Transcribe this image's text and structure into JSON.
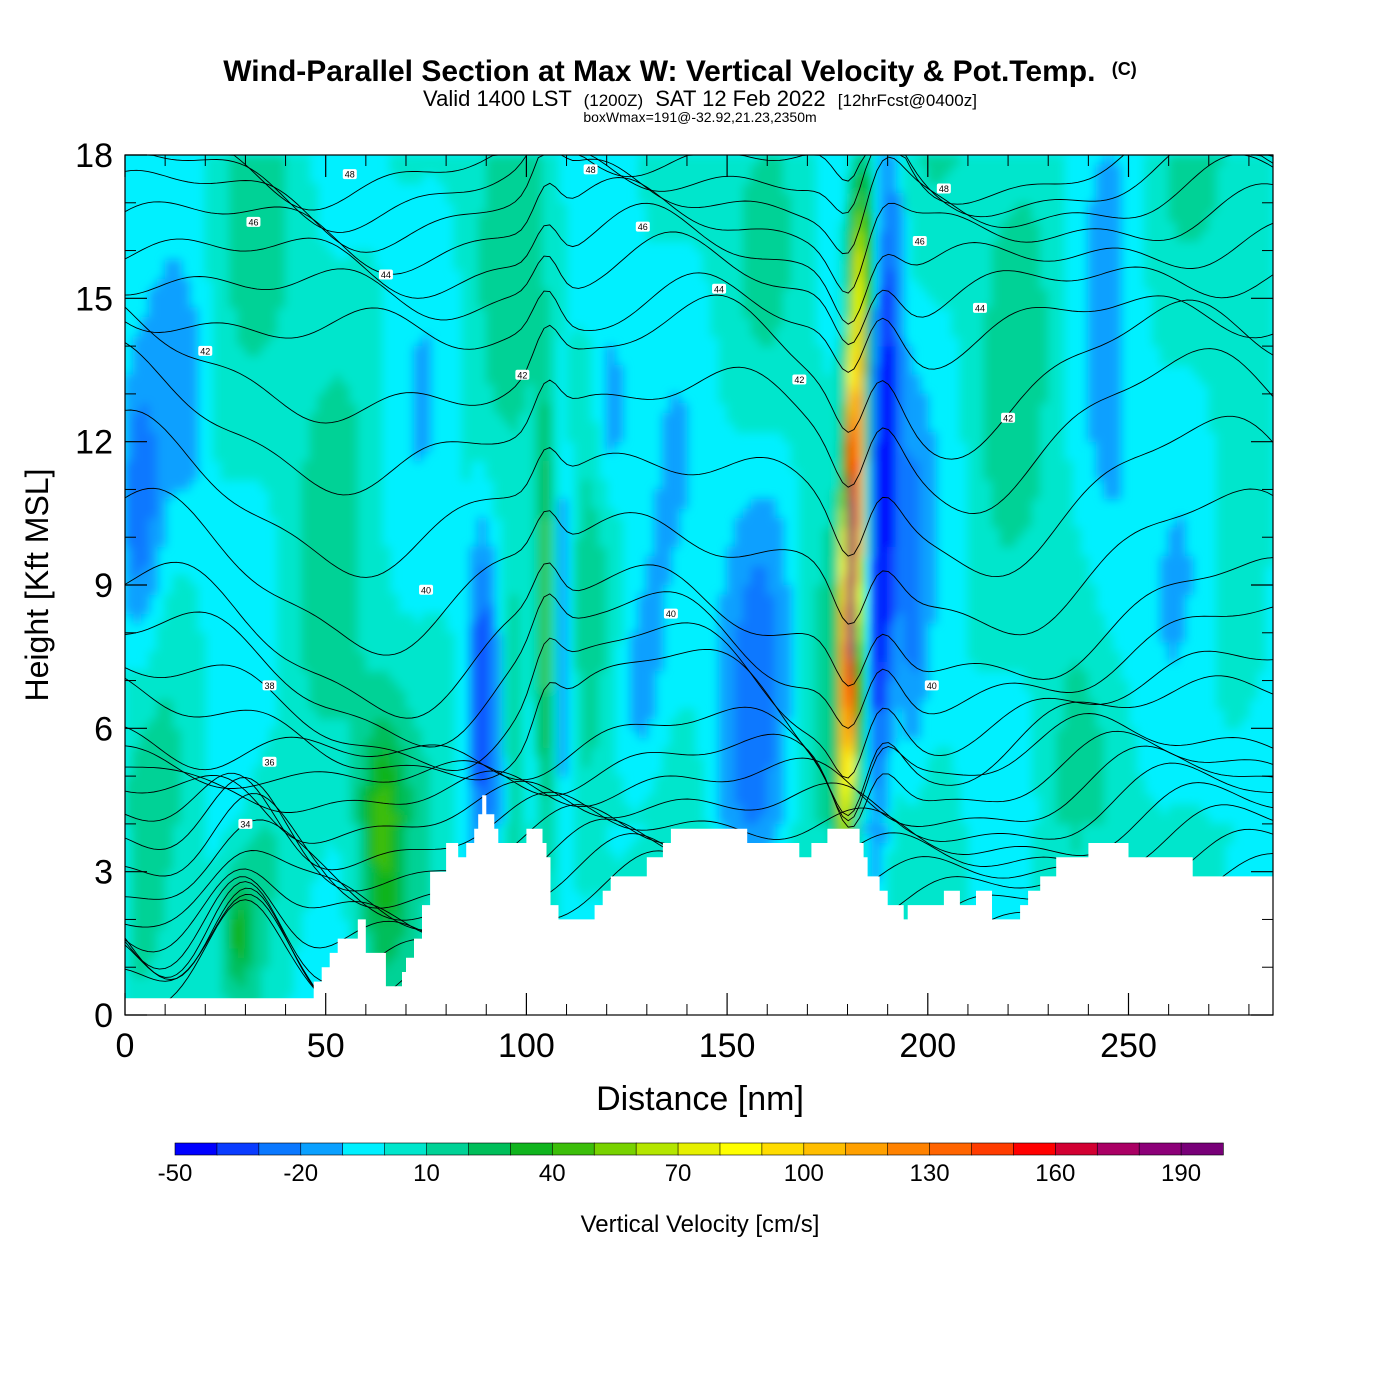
{
  "chart_data": {
    "type": "heatmap",
    "title": "Wind-Parallel Section at Max W: Vertical Velocity & Pot.Temp.",
    "title_mark": "(C)",
    "subtitle_parts": {
      "valid": "Valid 1400 LST",
      "utc": "(1200Z)",
      "date": "SAT 12 Feb 2022",
      "forecast": "[12hrFcst@0400z]"
    },
    "box_note": "boxWmax=191@-32.92,21.23,2350m",
    "xlabel": "Distance [nm]",
    "ylabel": "Height [Kft MSL]",
    "xlim": [
      0,
      286
    ],
    "ylim": [
      0,
      18
    ],
    "x_ticks": [
      "0",
      "50",
      "100",
      "150",
      "200",
      "250"
    ],
    "y_ticks": [
      "0",
      "3",
      "6",
      "9",
      "12",
      "15",
      "18"
    ],
    "grid": false,
    "colorbar": {
      "label": "Vertical Velocity [cm/s]",
      "placement": "bottom",
      "tick_labels": [
        "-50",
        "-20",
        "10",
        "40",
        "70",
        "100",
        "130",
        "160",
        "190"
      ],
      "levels": [
        -50,
        -40,
        -30,
        -20,
        -10,
        0,
        10,
        20,
        30,
        40,
        50,
        60,
        70,
        80,
        90,
        100,
        110,
        120,
        130,
        140,
        150,
        160,
        170,
        180,
        190,
        200
      ],
      "colors": [
        "#0000ff",
        "#0a3cff",
        "#0a78ff",
        "#0aa0ff",
        "#00f0ff",
        "#00e6cc",
        "#00d296",
        "#00be5a",
        "#10b41e",
        "#3cbe0a",
        "#78d200",
        "#b4e600",
        "#e6f000",
        "#ffff00",
        "#ffdc00",
        "#ffbe00",
        "#ffa000",
        "#ff8200",
        "#ff6400",
        "#ff3c00",
        "#ff0000",
        "#d20032",
        "#aa0064",
        "#8c0078",
        "#780078"
      ]
    },
    "contour_field": "potential temperature",
    "contour_labels": [
      {
        "text": "48",
        "x": 56,
        "y": 17.6
      },
      {
        "text": "48",
        "x": 116,
        "y": 17.7
      },
      {
        "text": "48",
        "x": 204,
        "y": 17.3
      },
      {
        "text": "46",
        "x": 32,
        "y": 16.6
      },
      {
        "text": "46",
        "x": 129,
        "y": 16.5
      },
      {
        "text": "46",
        "x": 198,
        "y": 16.2
      },
      {
        "text": "44",
        "x": 65,
        "y": 15.5
      },
      {
        "text": "44",
        "x": 148,
        "y": 15.2
      },
      {
        "text": "44",
        "x": 213,
        "y": 14.8
      },
      {
        "text": "42",
        "x": 20,
        "y": 13.9
      },
      {
        "text": "42",
        "x": 99,
        "y": 13.4
      },
      {
        "text": "42",
        "x": 168,
        "y": 13.3
      },
      {
        "text": "42",
        "x": 220,
        "y": 12.5
      },
      {
        "text": "40",
        "x": 75,
        "y": 8.9
      },
      {
        "text": "40",
        "x": 136,
        "y": 8.4
      },
      {
        "text": "40",
        "x": 201,
        "y": 6.9
      },
      {
        "text": "38",
        "x": 36,
        "y": 6.9
      },
      {
        "text": "36",
        "x": 36,
        "y": 5.3
      },
      {
        "text": "34",
        "x": 30,
        "y": 4.0
      }
    ],
    "features": [
      {
        "type": "updraft",
        "x": 181,
        "peak_w": 191
      },
      {
        "type": "downdraft",
        "x": 188,
        "min_w": -50
      },
      {
        "type": "updraft",
        "x": 105,
        "peak_w": 55
      },
      {
        "type": "updraft",
        "x": 64,
        "peak_w": 40
      },
      {
        "type": "updraft",
        "x": 28,
        "peak_w": 35
      }
    ],
    "terrain": {
      "distance_nm": [
        0,
        10,
        20,
        30,
        40,
        45,
        47,
        49,
        51,
        53,
        58,
        60,
        65,
        67,
        69,
        70,
        72,
        74,
        76,
        80,
        82,
        83,
        85,
        87,
        88,
        89,
        90,
        92,
        93,
        94,
        96,
        98,
        100,
        103,
        104,
        105,
        106,
        107,
        108,
        110,
        112,
        116,
        117,
        118,
        119,
        120,
        121,
        122,
        126,
        129,
        130,
        132,
        134,
        136,
        140,
        145,
        150,
        154,
        155,
        160,
        165,
        167,
        168,
        171,
        173,
        175,
        177,
        180,
        182,
        183,
        184,
        185,
        188,
        189,
        190,
        192,
        194,
        195,
        198,
        200,
        204,
        206,
        208,
        209,
        210,
        212,
        215,
        216,
        220,
        223,
        224,
        225,
        226,
        228,
        230,
        232,
        234,
        236,
        240,
        245,
        249,
        250,
        254,
        256,
        260,
        266,
        270,
        278,
        280,
        286
      ],
      "height_kft": [
        0.35,
        0.35,
        0.35,
        0.35,
        0.35,
        0.35,
        0.7,
        1.0,
        1.3,
        1.6,
        2.0,
        1.3,
        0.6,
        0.6,
        0.9,
        1.2,
        1.6,
        2.3,
        3.0,
        3.6,
        3.6,
        3.3,
        3.6,
        3.9,
        4.2,
        4.6,
        4.2,
        3.9,
        3.6,
        3.6,
        3.6,
        3.6,
        3.9,
        3.9,
        3.6,
        3.3,
        2.3,
        2.3,
        2.0,
        2.0,
        2.0,
        2.0,
        2.3,
        2.3,
        2.6,
        2.6,
        2.9,
        2.9,
        2.9,
        2.9,
        3.3,
        3.3,
        3.6,
        3.9,
        3.9,
        3.9,
        3.9,
        3.9,
        3.6,
        3.6,
        3.6,
        3.6,
        3.3,
        3.6,
        3.6,
        3.9,
        3.9,
        3.9,
        3.9,
        3.6,
        3.3,
        2.9,
        2.6,
        2.6,
        2.3,
        2.3,
        2.0,
        2.3,
        2.3,
        2.3,
        2.6,
        2.6,
        2.3,
        2.3,
        2.3,
        2.6,
        2.6,
        2.0,
        2.0,
        2.3,
        2.3,
        2.6,
        2.6,
        2.9,
        2.9,
        3.3,
        3.3,
        3.3,
        3.6,
        3.6,
        3.6,
        3.3,
        3.3,
        3.3,
        3.3,
        2.9,
        2.9,
        2.9,
        2.9,
        2.9
      ]
    }
  }
}
